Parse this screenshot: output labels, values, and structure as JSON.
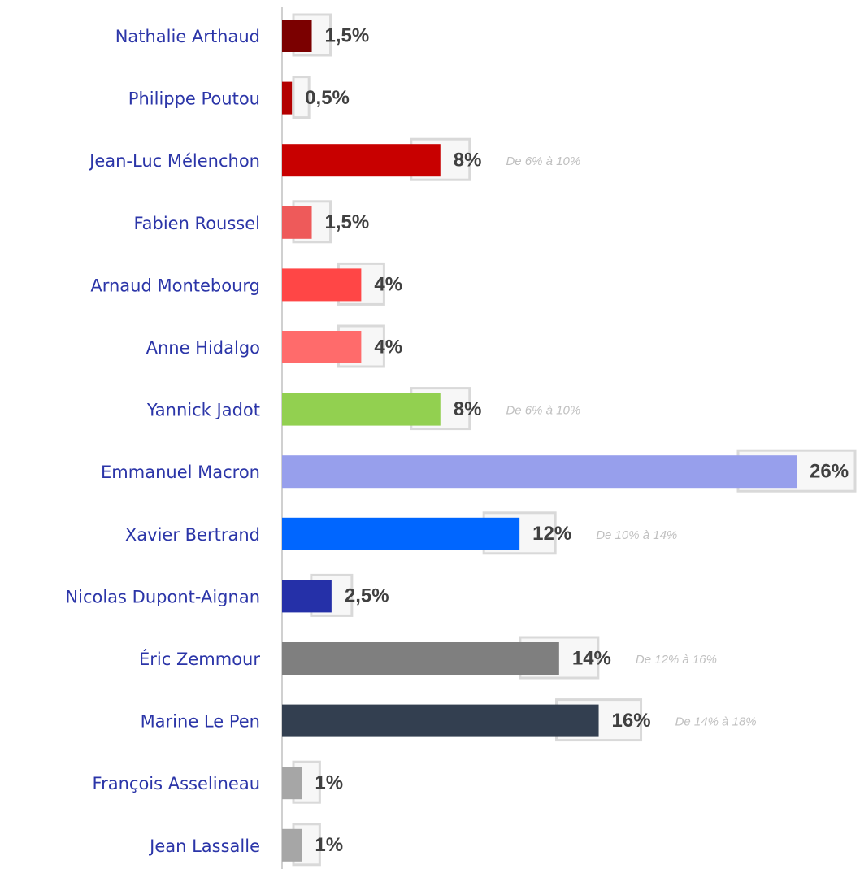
{
  "chart_data": {
    "type": "bar",
    "orientation": "horizontal",
    "categories": [
      "Nathalie Arthaud",
      "Philippe Poutou",
      "Jean-Luc Mélenchon",
      "Fabien Roussel",
      "Arnaud Montebourg",
      "Anne Hidalgo",
      "Yannick Jadot",
      "Emmanuel Macron",
      "Xavier Bertrand",
      "Nicolas Dupont-Aignan",
      "Éric Zemmour",
      "Marine Le Pen",
      "François Asselineau",
      "Jean Lassalle"
    ],
    "values": [
      1.5,
      0.5,
      8,
      1.5,
      4,
      4,
      8,
      26,
      12,
      2.5,
      14,
      16,
      1,
      1
    ],
    "value_labels": [
      "1,5%",
      "0,5%",
      "8%",
      "1,5%",
      "4%",
      "4%",
      "8%",
      "26%",
      "12%",
      "2,5%",
      "14%",
      "16%",
      "1%",
      "1%"
    ],
    "range_labels": [
      null,
      null,
      "De 6% à 10%",
      null,
      null,
      null,
      "De 6% à 10%",
      null,
      "De 10% à 14%",
      null,
      "De 12% à 16%",
      "De 14% à 18%",
      null,
      null
    ],
    "colors": [
      "#7b0000",
      "#b30000",
      "#c80000",
      "#ee5a5a",
      "#ff4646",
      "#ff6b6b",
      "#92d050",
      "#979fec",
      "#0066ff",
      "#2530a8",
      "#7f7f7f",
      "#333f50",
      "#a6a6a6",
      "#a6a6a6"
    ],
    "xlim": [
      0,
      26
    ]
  }
}
